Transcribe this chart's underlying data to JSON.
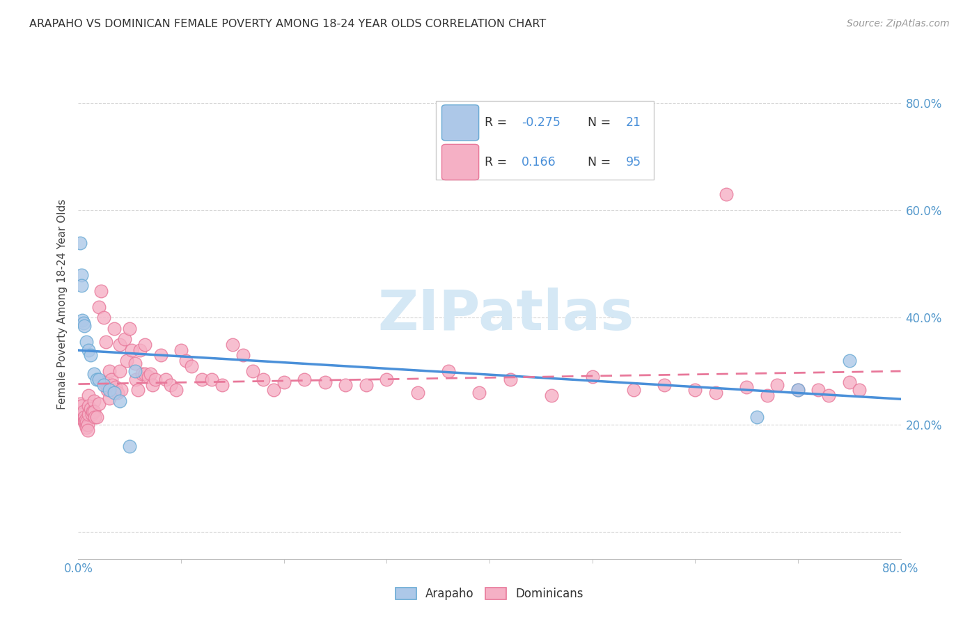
{
  "title": "ARAPAHO VS DOMINICAN FEMALE POVERTY AMONG 18-24 YEAR OLDS CORRELATION CHART",
  "source": "Source: ZipAtlas.com",
  "ylabel": "Female Poverty Among 18-24 Year Olds",
  "xlim": [
    0,
    0.8
  ],
  "ylim": [
    -0.05,
    0.9
  ],
  "arapaho_color": "#adc8e8",
  "dominican_color": "#f5b0c5",
  "arapaho_edge_color": "#6aaad4",
  "dominican_edge_color": "#e8789a",
  "arapaho_line_color": "#4a90d9",
  "dominican_line_color": "#e8789a",
  "right_y_color": "#5599cc",
  "watermark_color": "#d5e8f5",
  "arapaho_R": -0.275,
  "arapaho_N": 21,
  "dominican_R": 0.166,
  "dominican_N": 95,
  "arapaho_x": [
    0.002,
    0.003,
    0.003,
    0.004,
    0.005,
    0.006,
    0.008,
    0.01,
    0.012,
    0.015,
    0.018,
    0.02,
    0.025,
    0.03,
    0.035,
    0.04,
    0.05,
    0.055,
    0.66,
    0.7,
    0.75
  ],
  "arapaho_y": [
    0.54,
    0.48,
    0.46,
    0.395,
    0.39,
    0.385,
    0.355,
    0.34,
    0.33,
    0.295,
    0.285,
    0.285,
    0.275,
    0.265,
    0.26,
    0.245,
    0.16,
    0.3,
    0.215,
    0.265,
    0.32
  ],
  "dominican_x": [
    0.002,
    0.003,
    0.004,
    0.005,
    0.005,
    0.006,
    0.006,
    0.007,
    0.007,
    0.008,
    0.008,
    0.009,
    0.009,
    0.01,
    0.01,
    0.01,
    0.012,
    0.013,
    0.014,
    0.015,
    0.015,
    0.016,
    0.018,
    0.02,
    0.02,
    0.022,
    0.025,
    0.025,
    0.027,
    0.028,
    0.03,
    0.03,
    0.032,
    0.033,
    0.035,
    0.036,
    0.038,
    0.04,
    0.04,
    0.042,
    0.045,
    0.047,
    0.05,
    0.052,
    0.055,
    0.056,
    0.058,
    0.06,
    0.062,
    0.065,
    0.065,
    0.068,
    0.07,
    0.072,
    0.075,
    0.08,
    0.085,
    0.09,
    0.095,
    0.1,
    0.105,
    0.11,
    0.12,
    0.13,
    0.14,
    0.15,
    0.16,
    0.17,
    0.18,
    0.19,
    0.2,
    0.22,
    0.24,
    0.26,
    0.28,
    0.3,
    0.33,
    0.36,
    0.39,
    0.42,
    0.46,
    0.5,
    0.54,
    0.57,
    0.6,
    0.62,
    0.65,
    0.67,
    0.68,
    0.7,
    0.72,
    0.73,
    0.75,
    0.76,
    0.63
  ],
  "dominican_y": [
    0.24,
    0.235,
    0.22,
    0.225,
    0.21,
    0.215,
    0.205,
    0.21,
    0.2,
    0.205,
    0.195,
    0.2,
    0.19,
    0.255,
    0.235,
    0.22,
    0.23,
    0.22,
    0.225,
    0.245,
    0.225,
    0.215,
    0.215,
    0.24,
    0.42,
    0.45,
    0.28,
    0.4,
    0.355,
    0.265,
    0.3,
    0.25,
    0.285,
    0.275,
    0.38,
    0.27,
    0.26,
    0.35,
    0.3,
    0.265,
    0.36,
    0.32,
    0.38,
    0.34,
    0.315,
    0.285,
    0.265,
    0.34,
    0.295,
    0.35,
    0.295,
    0.29,
    0.295,
    0.275,
    0.285,
    0.33,
    0.285,
    0.275,
    0.265,
    0.34,
    0.32,
    0.31,
    0.285,
    0.285,
    0.275,
    0.35,
    0.33,
    0.3,
    0.285,
    0.265,
    0.28,
    0.285,
    0.28,
    0.275,
    0.275,
    0.285,
    0.26,
    0.3,
    0.26,
    0.285,
    0.255,
    0.29,
    0.265,
    0.275,
    0.265,
    0.26,
    0.27,
    0.255,
    0.275,
    0.265,
    0.265,
    0.255,
    0.28,
    0.265,
    0.63
  ]
}
